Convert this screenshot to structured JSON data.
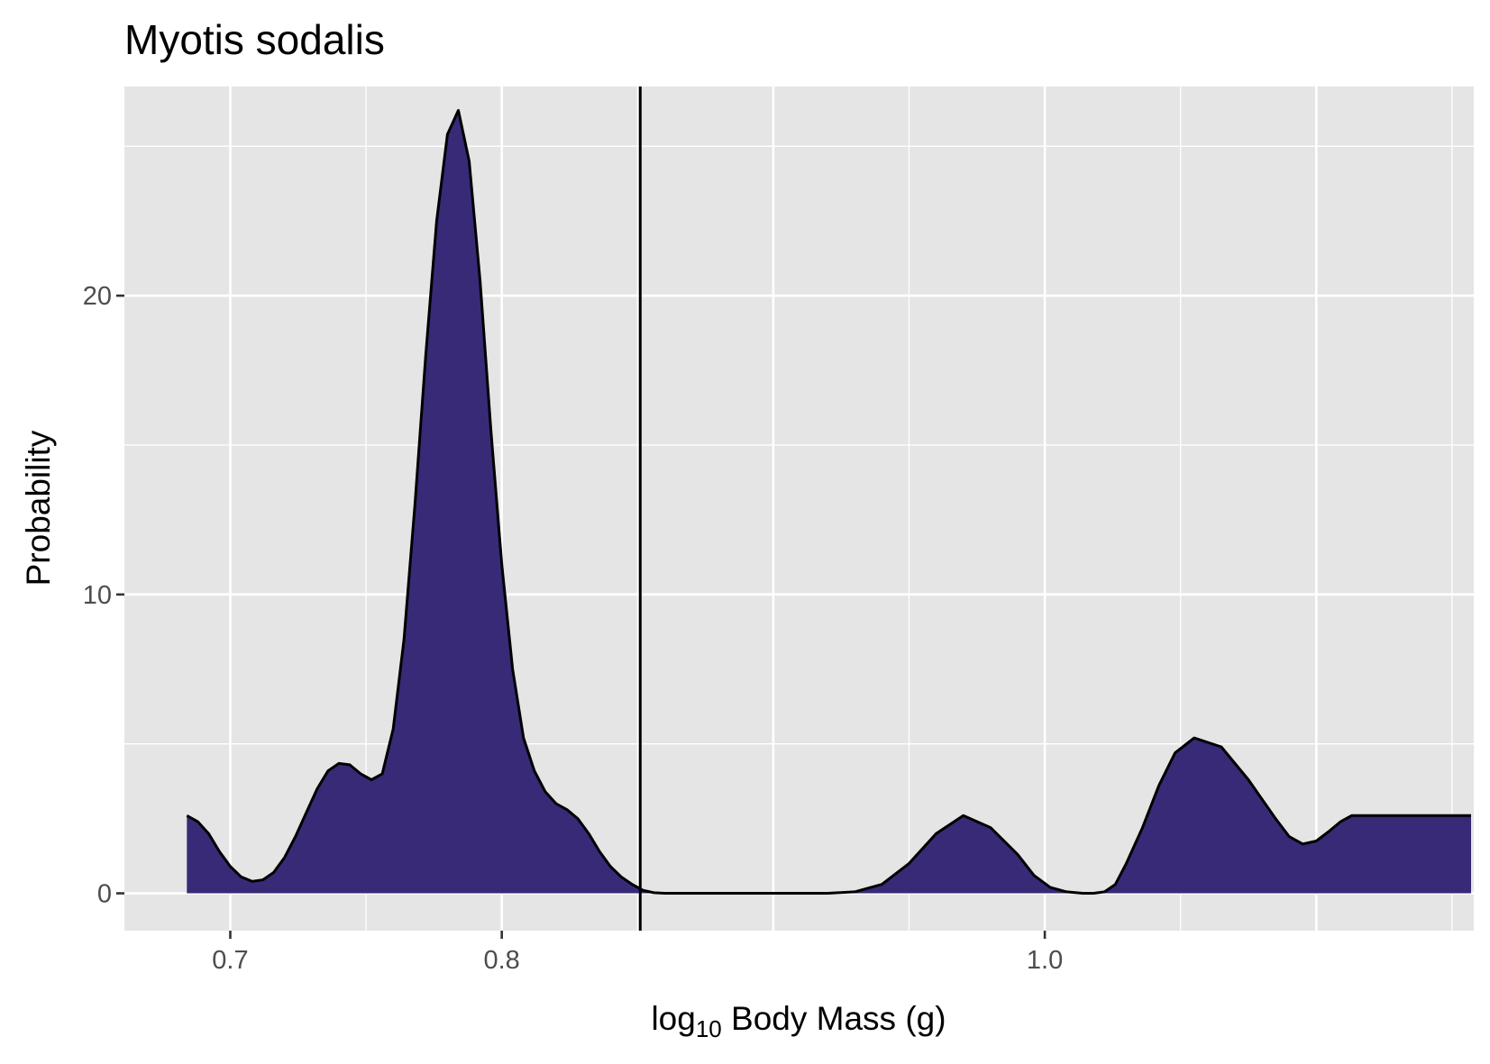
{
  "chart_data": {
    "type": "area",
    "title": "Myotis sodalis",
    "xlabel": "log10 Body Mass (g)",
    "xlabel_parts": {
      "base": "log",
      "subscript": "10",
      "rest": " Body Mass (g)"
    },
    "ylabel": "Probability",
    "xlim": [
      0.661,
      1.158
    ],
    "ylim": [
      -1.25,
      27.0
    ],
    "x_ticks": [
      0.7,
      0.8,
      1.0
    ],
    "x_tick_labels": [
      "0.7",
      "0.8",
      "1.0"
    ],
    "y_ticks": [
      0,
      10,
      20
    ],
    "y_tick_labels": [
      "0",
      "10",
      "20"
    ],
    "grid": true,
    "background": "#e5e5e5",
    "fill_color": "#382a77",
    "line_color": "#000000",
    "vline_x": 0.851,
    "series": [
      {
        "x": [
          0.684,
          0.688,
          0.692,
          0.696,
          0.7,
          0.704,
          0.708,
          0.712,
          0.716,
          0.72,
          0.724,
          0.728,
          0.732,
          0.736,
          0.74,
          0.744,
          0.748,
          0.752,
          0.756,
          0.76,
          0.764,
          0.768,
          0.772,
          0.776,
          0.78,
          0.784,
          0.788,
          0.792,
          0.796,
          0.8,
          0.804,
          0.808,
          0.812,
          0.816,
          0.82,
          0.824,
          0.828,
          0.832,
          0.836,
          0.84,
          0.844,
          0.848,
          0.852,
          0.856,
          0.86,
          0.864,
          0.868,
          0.872,
          0.876,
          0.88,
          0.884,
          0.888,
          0.892,
          0.896,
          0.9,
          0.91,
          0.92,
          0.93,
          0.94,
          0.95,
          0.96,
          0.97,
          0.98,
          0.99,
          0.996,
          1.002,
          1.008,
          1.014,
          1.018,
          1.022,
          1.026,
          1.03,
          1.036,
          1.042,
          1.048,
          1.055,
          1.065,
          1.075,
          1.085,
          1.09,
          1.095,
          1.1,
          1.105,
          1.109,
          1.113,
          1.117,
          1.121,
          1.125,
          1.129,
          1.133,
          1.137,
          1.141,
          1.145,
          1.149,
          1.153,
          1.157
        ],
        "y": [
          2.6,
          2.4,
          2.0,
          1.4,
          0.9,
          0.55,
          0.4,
          0.45,
          0.7,
          1.2,
          1.9,
          2.7,
          3.5,
          4.1,
          4.35,
          4.3,
          4.0,
          3.8,
          4.0,
          5.5,
          8.5,
          13.0,
          18.0,
          22.5,
          25.4,
          26.2,
          24.5,
          20.5,
          15.5,
          11.0,
          7.5,
          5.2,
          4.1,
          3.4,
          3.0,
          2.8,
          2.5,
          2.0,
          1.4,
          0.9,
          0.55,
          0.3,
          0.1,
          0.02,
          0.0,
          0.0,
          0.0,
          0.0,
          0.0,
          0.0,
          0.0,
          0.0,
          0.0,
          0.0,
          0.0,
          0.0,
          0.0,
          0.05,
          0.3,
          1.0,
          2.0,
          2.6,
          2.2,
          1.3,
          0.6,
          0.2,
          0.05,
          0.0,
          0.0,
          0.05,
          0.3,
          1.0,
          2.2,
          3.6,
          4.7,
          5.2,
          4.9,
          3.8,
          2.5,
          1.9,
          1.65,
          1.75,
          2.1,
          2.4,
          2.6,
          2.6,
          2.6,
          2.6,
          2.6,
          2.6,
          2.6,
          2.6,
          2.6,
          2.6,
          2.6,
          2.6
        ]
      }
    ]
  }
}
